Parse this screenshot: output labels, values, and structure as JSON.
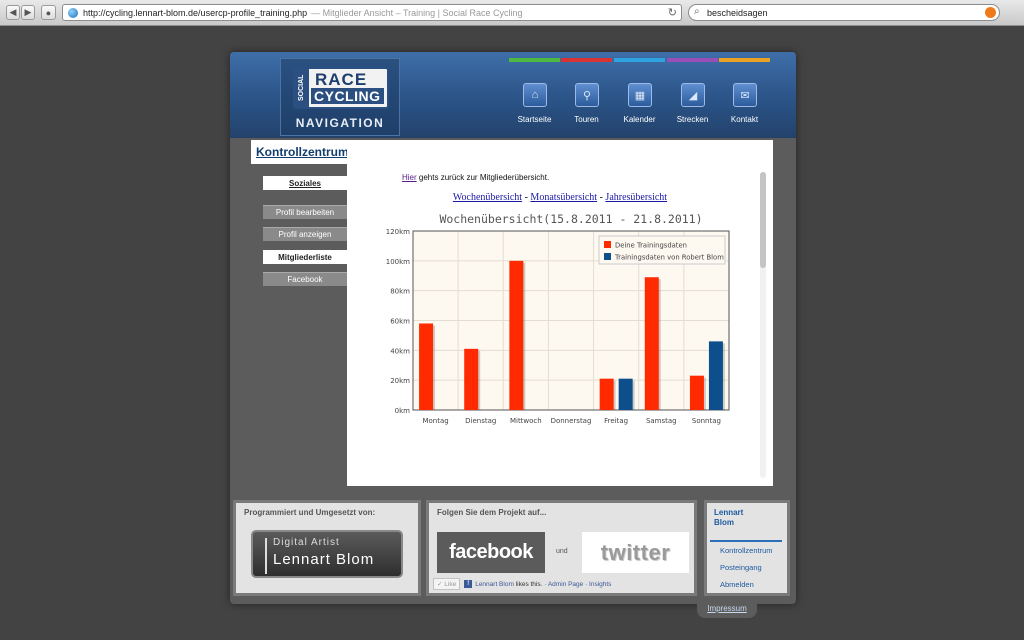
{
  "browser": {
    "url": "http://cycling.lennart-blom.de/usercp-profile_training.php",
    "page_title": "— Mitglieder Ansicht – Training | Social Race Cycling",
    "search_value": "bescheidsagen"
  },
  "logo": {
    "social": "SOCIAL",
    "race": "RACE",
    "cycling": "CYCLING",
    "navigation": "NAVIGATION"
  },
  "menu": [
    {
      "label": "Startseite",
      "color": "#4fb843",
      "icon": "home-icon"
    },
    {
      "label": "Touren",
      "color": "#d93434",
      "icon": "bike-icon"
    },
    {
      "label": "Kalender",
      "color": "#2fa3e0",
      "icon": "calendar-icon"
    },
    {
      "label": "Strecken",
      "color": "#9a4fb8",
      "icon": "route-icon"
    },
    {
      "label": "Kontakt",
      "color": "#e8a326",
      "icon": "mail-icon"
    }
  ],
  "sidebar": {
    "title": "Kontrollzentrum",
    "section": "Soziales",
    "items": [
      "Profil bearbeiten",
      "Profil anzeigen",
      "Mitgliederliste",
      "Facebook"
    ]
  },
  "main": {
    "back_link": "Hier",
    "back_text": "gehts zurück zur Mitgliederübersicht.",
    "links": [
      "Wochenübersicht",
      "Monatsübersicht",
      "Jahresübersicht"
    ],
    "link_sep": " - "
  },
  "chart_data": {
    "type": "bar",
    "title": "Wochenübersicht(15.8.2011 - 21.8.2011)",
    "categories": [
      "Montag",
      "Dienstag",
      "Mittwoch",
      "Donnerstag",
      "Freitag",
      "Samstag",
      "Sonntag"
    ],
    "series": [
      {
        "name": "Deine Trainingsdaten",
        "color": "#ff2a00",
        "values": [
          58,
          41,
          100,
          0,
          21,
          89,
          23
        ]
      },
      {
        "name": "Trainingsdaten von Robert Blom",
        "color": "#0d4f8a",
        "values": [
          0,
          0,
          0,
          0,
          21,
          0,
          46
        ]
      }
    ],
    "ylim": [
      0,
      120
    ],
    "yticks": [
      "0km",
      "20km",
      "40km",
      "60km",
      "80km",
      "100km",
      "120km"
    ],
    "grid": true,
    "legend": "top-right"
  },
  "footer": {
    "credits_title": "Programmiert und Umgesetzt von:",
    "badge_sub": "Digital Artist",
    "badge_name": "Lennart Blom",
    "follow_title": "Folgen Sie dem Projekt auf...",
    "facebook": "facebook",
    "und": "und",
    "twitter": "twitter",
    "like": "Like",
    "like_name": "Lennart Blom",
    "like_text": "likes this.",
    "like_admin": "· Admin Page · Insights",
    "user_name": "Lennart Blom",
    "user_links": [
      "Kontrollzentrum",
      "Posteingang",
      "Abmelden"
    ],
    "impressum": "Impressum"
  }
}
